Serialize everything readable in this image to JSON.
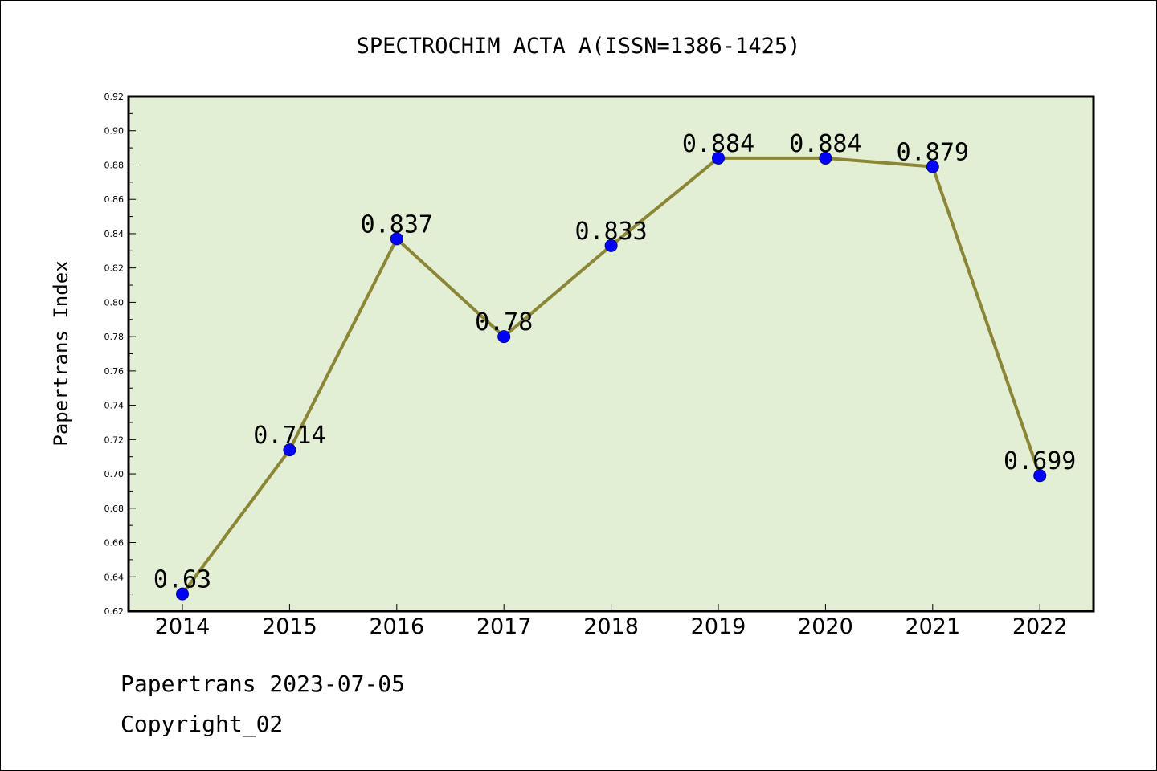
{
  "chart_data": {
    "type": "line",
    "title": "SPECTROCHIM ACTA A(ISSN=1386-1425)",
    "xlabel": "",
    "ylabel": "Papertrans Index",
    "categories": [
      "2014",
      "2015",
      "2016",
      "2017",
      "2018",
      "2019",
      "2020",
      "2021",
      "2022"
    ],
    "values": [
      0.63,
      0.714,
      0.837,
      0.78,
      0.833,
      0.884,
      0.884,
      0.879,
      0.699
    ],
    "data_labels": [
      "0.63",
      "0.714",
      "0.837",
      "0.78",
      "0.833",
      "0.884",
      "0.884",
      "0.879",
      "0.699"
    ],
    "ylim": [
      0.62,
      0.92
    ],
    "yticks": [
      "0.62",
      "0.64",
      "0.66",
      "0.68",
      "0.70",
      "0.72",
      "0.74",
      "0.76",
      "0.78",
      "0.80",
      "0.82",
      "0.84",
      "0.86",
      "0.88",
      "0.90",
      "0.92"
    ],
    "grid": false,
    "line_color": "#8b8635",
    "marker_color": "#0000ff",
    "plot_background": "#e2efd5"
  },
  "footer": {
    "line1": "Papertrans 2023-07-05",
    "line2": "Copyright_02"
  }
}
